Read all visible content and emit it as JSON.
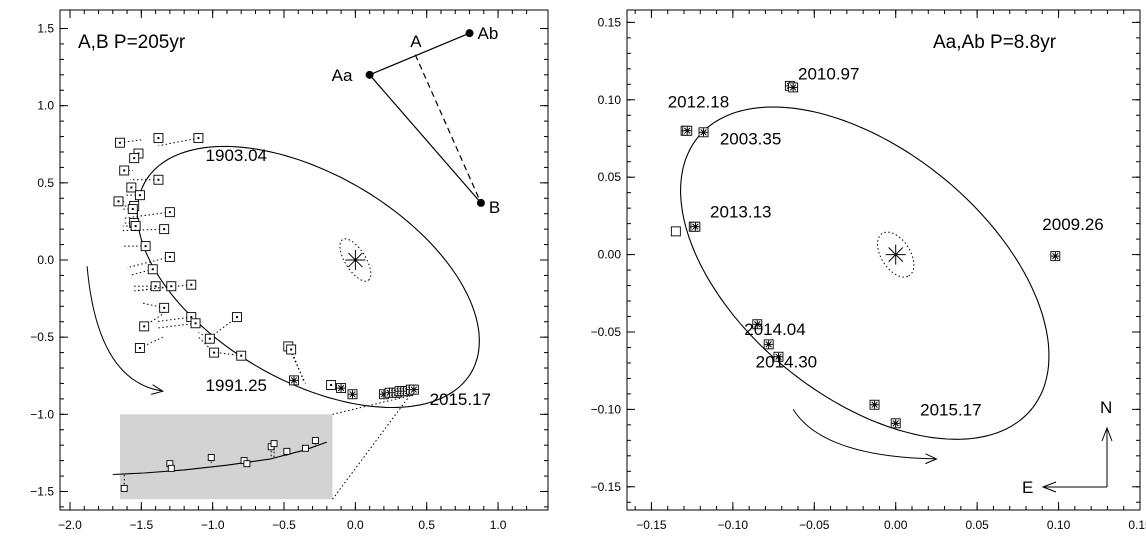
{
  "chart_data": [
    {
      "type": "scatter",
      "title": "A,B P=205yr",
      "xlabel": "",
      "ylabel": "",
      "xlim": [
        2.0,
        -1.9
      ],
      "ylim": [
        -1.62,
        1.62
      ],
      "x_ticks": [
        "−2.0",
        "−1.5",
        "−1.0",
        "−0.5",
        "0.0",
        "0.5",
        "1.0"
      ],
      "y_ticks": [
        "−1.5",
        "−1.0",
        "−0.5",
        "0.0",
        "0.5",
        "1.0",
        "1.5"
      ],
      "grid": false,
      "orbit": {
        "center": [
          -0.33,
          -0.11
        ],
        "semi_axes": [
          1.3,
          0.68
        ],
        "tilt_deg": -27
      },
      "error_ellipse": {
        "center": [
          0.0,
          0.0
        ],
        "semi_axes": [
          0.16,
          0.07
        ],
        "tilt_deg": -55
      },
      "observations_visual": [
        {
          "x": 1.65,
          "y": 0.76,
          "fx": 1.49,
          "fy": 0.78
        },
        {
          "x": 1.38,
          "y": 0.79,
          "fx": 1.42,
          "fy": 0.77
        },
        {
          "x": 1.1,
          "y": 0.79,
          "fx": 1.38,
          "fy": 0.74
        },
        {
          "x": 1.52,
          "y": 0.69,
          "fx": 1.52,
          "fy": 0.66
        },
        {
          "x": 1.55,
          "y": 0.66,
          "fx": 1.53,
          "fy": 0.64
        },
        {
          "x": 1.62,
          "y": 0.58,
          "fx": 1.56,
          "fy": 0.58
        },
        {
          "x": 1.38,
          "y": 0.52,
          "fx": 1.58,
          "fy": 0.52
        },
        {
          "x": 1.57,
          "y": 0.47,
          "fx": 1.6,
          "fy": 0.47
        },
        {
          "x": 1.51,
          "y": 0.42,
          "fx": 1.61,
          "fy": 0.42
        },
        {
          "x": 1.66,
          "y": 0.38,
          "fx": 1.62,
          "fy": 0.38
        },
        {
          "x": 1.55,
          "y": 0.35,
          "fx": 1.62,
          "fy": 0.35
        },
        {
          "x": 1.56,
          "y": 0.33,
          "fx": 1.63,
          "fy": 0.33
        },
        {
          "x": 1.3,
          "y": 0.31,
          "fx": 1.63,
          "fy": 0.27
        },
        {
          "x": 1.55,
          "y": 0.24,
          "fx": 1.63,
          "fy": 0.24
        },
        {
          "x": 1.54,
          "y": 0.22,
          "fx": 1.63,
          "fy": 0.22
        },
        {
          "x": 1.34,
          "y": 0.2,
          "fx": 1.63,
          "fy": 0.19
        },
        {
          "x": 1.47,
          "y": 0.09,
          "fx": 1.62,
          "fy": 0.09
        },
        {
          "x": 1.3,
          "y": 0.02,
          "fx": 1.6,
          "fy": -0.05
        },
        {
          "x": 1.42,
          "y": -0.06,
          "fx": 1.58,
          "fy": -0.1
        },
        {
          "x": 1.15,
          "y": -0.16,
          "fx": 1.54,
          "fy": -0.2
        },
        {
          "x": 1.4,
          "y": -0.17,
          "fx": 1.56,
          "fy": -0.17
        },
        {
          "x": 1.29,
          "y": -0.17,
          "fx": 1.55,
          "fy": -0.2
        },
        {
          "x": 1.34,
          "y": -0.31,
          "fx": 1.49,
          "fy": -0.28
        },
        {
          "x": 1.15,
          "y": -0.37,
          "fx": 1.4,
          "fy": -0.4
        },
        {
          "x": 1.12,
          "y": -0.41,
          "fx": 1.38,
          "fy": -0.44
        },
        {
          "x": 1.48,
          "y": -0.43,
          "fx": 1.35,
          "fy": -0.35
        },
        {
          "x": 0.83,
          "y": -0.37,
          "fx": 1.0,
          "fy": -0.49
        },
        {
          "x": 1.02,
          "y": -0.51,
          "fx": 1.1,
          "fy": -0.47
        },
        {
          "x": 1.51,
          "y": -0.57,
          "fx": 1.35,
          "fy": -0.5
        },
        {
          "x": 0.99,
          "y": -0.6,
          "fx": 1.1,
          "fy": -0.5
        },
        {
          "x": 0.8,
          "y": -0.62,
          "fx": 0.97,
          "fy": -0.6
        },
        {
          "x": 0.47,
          "y": -0.56,
          "fx": 0.35,
          "fy": -0.8
        },
        {
          "x": 0.45,
          "y": -0.58,
          "fx": 0.36,
          "fy": -0.79
        },
        {
          "x": 0.17,
          "y": -0.81,
          "fx": 0.14,
          "fy": -0.84
        }
      ],
      "observations_speckle": [
        [
          0.43,
          -0.78
        ],
        [
          0.1,
          -0.83
        ],
        [
          0.02,
          -0.87
        ],
        [
          -0.2,
          -0.87
        ],
        [
          -0.24,
          -0.86
        ],
        [
          -0.27,
          -0.86
        ],
        [
          -0.29,
          -0.86
        ],
        [
          -0.31,
          -0.85
        ],
        [
          -0.33,
          -0.85
        ],
        [
          -0.35,
          -0.85
        ],
        [
          -0.37,
          -0.85
        ],
        [
          -0.39,
          -0.84
        ],
        [
          -0.41,
          -0.84
        ]
      ],
      "arrow": {
        "from": [
          1.88,
          -0.04
        ],
        "to": [
          1.35,
          -0.85
        ]
      },
      "labels": [
        {
          "text": "1903.04",
          "x": 1.05,
          "y": 0.64
        },
        {
          "text": "1991.25",
          "x": 1.05,
          "y": -0.85
        },
        {
          "text": "2015.17",
          "x": -0.52,
          "y": -0.94
        }
      ],
      "inset": {
        "x_range": [
          1.65,
          0.16
        ],
        "y_range": [
          -1.55,
          -1.0
        ],
        "curve": [
          [
            1.7,
            -1.39
          ],
          [
            1.48,
            -1.38
          ],
          [
            1.2,
            -1.36
          ],
          [
            0.9,
            -1.33
          ],
          [
            0.6,
            -1.29
          ],
          [
            0.35,
            -1.23
          ],
          [
            0.2,
            -1.18
          ]
        ],
        "obs": [
          {
            "x": 1.62,
            "y": -1.48,
            "fx": 1.62,
            "fy": -1.38
          },
          {
            "x": 1.3,
            "y": -1.32,
            "fx": 1.3,
            "fy": -1.36
          },
          {
            "x": 1.29,
            "y": -1.35,
            "fx": 1.29,
            "fy": -1.36
          },
          {
            "x": 1.01,
            "y": -1.28,
            "fx": 1.01,
            "fy": -1.33
          },
          {
            "x": 0.78,
            "y": -1.3,
            "fx": 0.78,
            "fy": -1.31
          },
          {
            "x": 0.76,
            "y": -1.32,
            "fx": 0.76,
            "fy": -1.31
          },
          {
            "x": 0.59,
            "y": -1.21,
            "fx": 0.59,
            "fy": -1.29
          },
          {
            "x": 0.57,
            "y": -1.19,
            "fx": 0.57,
            "fy": -1.28
          },
          {
            "x": 0.48,
            "y": -1.24,
            "fx": 0.48,
            "fy": -1.27
          },
          {
            "x": 0.35,
            "y": -1.22,
            "fx": 0.35,
            "fy": -1.24
          },
          {
            "x": 0.28,
            "y": -1.17,
            "fx": 0.28,
            "fy": -1.2
          }
        ],
        "link_from": [
          [
            0.16,
            -1.55
          ],
          [
            0.16,
            -1.0
          ]
        ],
        "link_to": [
          [
            -0.38,
            -0.88
          ],
          [
            -0.38,
            -0.88
          ]
        ]
      },
      "sketch": {
        "points": [
          {
            "label": "Aa",
            "x": -0.1,
            "y": 1.2
          },
          {
            "label": "Ab",
            "x": -0.8,
            "y": 1.47
          },
          {
            "label": "B",
            "x": -0.88,
            "y": 0.37
          }
        ],
        "mid_label": "A",
        "mid": [
          -0.42,
          1.33
        ]
      }
    },
    {
      "type": "scatter",
      "title": "Aa,Ab P=8.8yr",
      "xlabel": "",
      "ylabel": "",
      "xlim": [
        0.17,
        -0.15
      ],
      "ylim": [
        -0.165,
        0.158
      ],
      "x_ticks": [
        "−0.15",
        "−0.10",
        "−0.05",
        "0.00",
        "0.05",
        "0.10",
        "0.15"
      ],
      "y_ticks": [
        "−0.15",
        "−0.10",
        "−0.05",
        "0.00",
        "0.05",
        "0.10",
        "0.15"
      ],
      "grid": false,
      "orbit": {
        "center": [
          0.0,
          0.0
        ],
        "semi_axes": [
          0.135,
          0.078
        ],
        "tilt_deg": -42
      },
      "error_ellipse": {
        "center": [
          0.0,
          0.0
        ],
        "semi_axes": [
          0.016,
          0.009
        ],
        "tilt_deg": -60
      },
      "observations_speckle": [
        [
          0.065,
          0.109
        ],
        [
          0.063,
          0.108
        ],
        [
          0.129,
          0.08
        ],
        [
          0.128,
          0.08
        ],
        [
          0.118,
          0.079
        ],
        [
          0.124,
          0.018
        ],
        [
          0.123,
          0.018
        ],
        [
          -0.098,
          -0.001
        ],
        [
          0.085,
          -0.045
        ],
        [
          0.078,
          -0.058
        ],
        [
          0.072,
          -0.066
        ],
        [
          0.013,
          -0.097
        ],
        [
          0.0,
          -0.109
        ]
      ],
      "observations_visual": [
        {
          "x": 0.135,
          "y": 0.015
        }
      ],
      "arrow": {
        "from": [
          0.063,
          -0.1
        ],
        "to": [
          -0.025,
          -0.132
        ]
      },
      "labels": [
        {
          "text": "2010.97",
          "x": 0.06,
          "y": 0.113
        },
        {
          "text": "2012.18",
          "x": 0.14,
          "y": 0.095
        },
        {
          "text": "2003.35",
          "x": 0.108,
          "y": 0.071
        },
        {
          "text": "2013.13",
          "x": 0.114,
          "y": 0.024
        },
        {
          "text": "2009.26",
          "x": -0.09,
          "y": 0.016
        },
        {
          "text": "2014.04",
          "x": 0.093,
          "y": -0.052
        },
        {
          "text": "2014.30",
          "x": 0.086,
          "y": -0.073
        },
        {
          "text": "2015.17",
          "x": -0.015,
          "y": -0.104
        }
      ],
      "compass": {
        "north": "N",
        "east": "E"
      }
    }
  ]
}
